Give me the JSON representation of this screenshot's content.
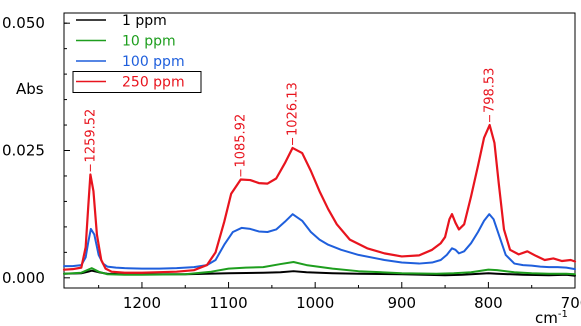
{
  "chart_data": {
    "type": "line",
    "title": "",
    "xlabel": "cm",
    "xlabel_superscript": "-1",
    "ylabel": "Abs",
    "xlim": [
      1290,
      700
    ],
    "ylim": [
      -0.002,
      0.052
    ],
    "x_reversed": true,
    "x_ticks": [
      1200,
      1100,
      1000,
      900,
      800,
      700
    ],
    "x_tick_labels": [
      "1200",
      "1100",
      "1000",
      "900",
      "800",
      "700"
    ],
    "y_ticks": [
      0.0,
      0.025,
      0.05
    ],
    "y_tick_labels": [
      "0.000",
      "0.025",
      "0.050"
    ],
    "grid": false,
    "legend_position": "top-left",
    "series": [
      {
        "name": "1 ppm",
        "color": "#000000",
        "x": [
          1290,
          1270,
          1262,
          1258,
          1250,
          1240,
          1220,
          1200,
          1150,
          1100,
          1060,
          1040,
          1025,
          1010,
          980,
          950,
          900,
          850,
          830,
          810,
          800,
          790,
          760,
          730,
          710,
          700
        ],
        "y": [
          0.0008,
          0.0009,
          0.0012,
          0.0014,
          0.0011,
          0.0008,
          0.0007,
          0.0007,
          0.0007,
          0.0009,
          0.001,
          0.0011,
          0.0013,
          0.0011,
          0.0009,
          0.0008,
          0.0007,
          0.0005,
          0.0006,
          0.0008,
          0.0009,
          0.0008,
          0.0006,
          0.0005,
          0.0006,
          0.0004
        ]
      },
      {
        "name": "10 ppm",
        "color": "#1e9e1e",
        "x": [
          1290,
          1270,
          1262,
          1258,
          1250,
          1240,
          1220,
          1200,
          1150,
          1120,
          1100,
          1080,
          1060,
          1040,
          1025,
          1010,
          980,
          950,
          900,
          860,
          840,
          820,
          800,
          790,
          770,
          750,
          730,
          710,
          700
        ],
        "y": [
          0.0008,
          0.001,
          0.0016,
          0.0019,
          0.0012,
          0.0007,
          0.0006,
          0.0006,
          0.0007,
          0.0012,
          0.0018,
          0.002,
          0.0021,
          0.0027,
          0.0031,
          0.0025,
          0.0018,
          0.0013,
          0.0009,
          0.0008,
          0.0009,
          0.0011,
          0.0016,
          0.0015,
          0.0011,
          0.0009,
          0.0008,
          0.0008,
          0.0007
        ]
      },
      {
        "name": "100 ppm",
        "color": "#1f5fdc",
        "x": [
          1290,
          1280,
          1270,
          1265,
          1262,
          1259,
          1255,
          1250,
          1245,
          1240,
          1230,
          1220,
          1200,
          1180,
          1160,
          1140,
          1125,
          1115,
          1105,
          1095,
          1085,
          1075,
          1065,
          1055,
          1045,
          1035,
          1026,
          1015,
          1005,
          995,
          985,
          970,
          950,
          920,
          900,
          880,
          865,
          855,
          848,
          842,
          838,
          834,
          828,
          820,
          812,
          805,
          799,
          794,
          788,
          780,
          770,
          760,
          750,
          740,
          730,
          720,
          710,
          700
        ],
        "y": [
          0.0023,
          0.0023,
          0.0025,
          0.004,
          0.007,
          0.0096,
          0.0085,
          0.0045,
          0.0028,
          0.0022,
          0.002,
          0.0019,
          0.0018,
          0.0018,
          0.0019,
          0.0021,
          0.0025,
          0.0035,
          0.0065,
          0.009,
          0.0098,
          0.0096,
          0.0091,
          0.009,
          0.0095,
          0.011,
          0.0125,
          0.0112,
          0.009,
          0.0075,
          0.0065,
          0.0055,
          0.0045,
          0.0035,
          0.003,
          0.0028,
          0.003,
          0.0035,
          0.0045,
          0.0058,
          0.0055,
          0.0048,
          0.0052,
          0.0068,
          0.009,
          0.0112,
          0.0125,
          0.0115,
          0.0085,
          0.0045,
          0.0028,
          0.0025,
          0.0024,
          0.0022,
          0.0021,
          0.0021,
          0.002,
          0.0017
        ]
      },
      {
        "name": "250 ppm",
        "color": "#e8141e",
        "x": [
          1290,
          1280,
          1270,
          1265,
          1262,
          1259.52,
          1256,
          1252,
          1247,
          1242,
          1235,
          1220,
          1200,
          1180,
          1160,
          1140,
          1125,
          1115,
          1105,
          1097,
          1085.92,
          1075,
          1065,
          1055,
          1045,
          1035,
          1026.13,
          1015,
          1005,
          995,
          985,
          975,
          960,
          940,
          920,
          900,
          880,
          865,
          855,
          850,
          845,
          842,
          838,
          834,
          828,
          820,
          812,
          805,
          798.53,
          793,
          788,
          782,
          775,
          765,
          755,
          745,
          735,
          725,
          715,
          705,
          700
        ],
        "y": [
          0.0016,
          0.0017,
          0.002,
          0.006,
          0.014,
          0.0203,
          0.017,
          0.0085,
          0.0035,
          0.0018,
          0.0012,
          0.001,
          0.001,
          0.0011,
          0.0012,
          0.0015,
          0.0025,
          0.005,
          0.011,
          0.0165,
          0.0193,
          0.0192,
          0.0186,
          0.0185,
          0.0195,
          0.0225,
          0.0255,
          0.0245,
          0.021,
          0.017,
          0.0135,
          0.0105,
          0.0075,
          0.0058,
          0.0048,
          0.0042,
          0.0044,
          0.0055,
          0.0068,
          0.008,
          0.0115,
          0.0125,
          0.0108,
          0.0095,
          0.0105,
          0.016,
          0.022,
          0.0275,
          0.03,
          0.0265,
          0.0185,
          0.0095,
          0.0055,
          0.0046,
          0.0052,
          0.0043,
          0.0035,
          0.0038,
          0.0033,
          0.0035,
          0.0032
        ]
      }
    ],
    "annotations": [
      {
        "text": "1259.52",
        "x": 1259.52,
        "y": 0.0203
      },
      {
        "text": "1085.92",
        "x": 1085.92,
        "y": 0.0193
      },
      {
        "text": "1026.13",
        "x": 1026.13,
        "y": 0.0255
      },
      {
        "text": "798.53",
        "x": 798.53,
        "y": 0.03
      }
    ]
  }
}
